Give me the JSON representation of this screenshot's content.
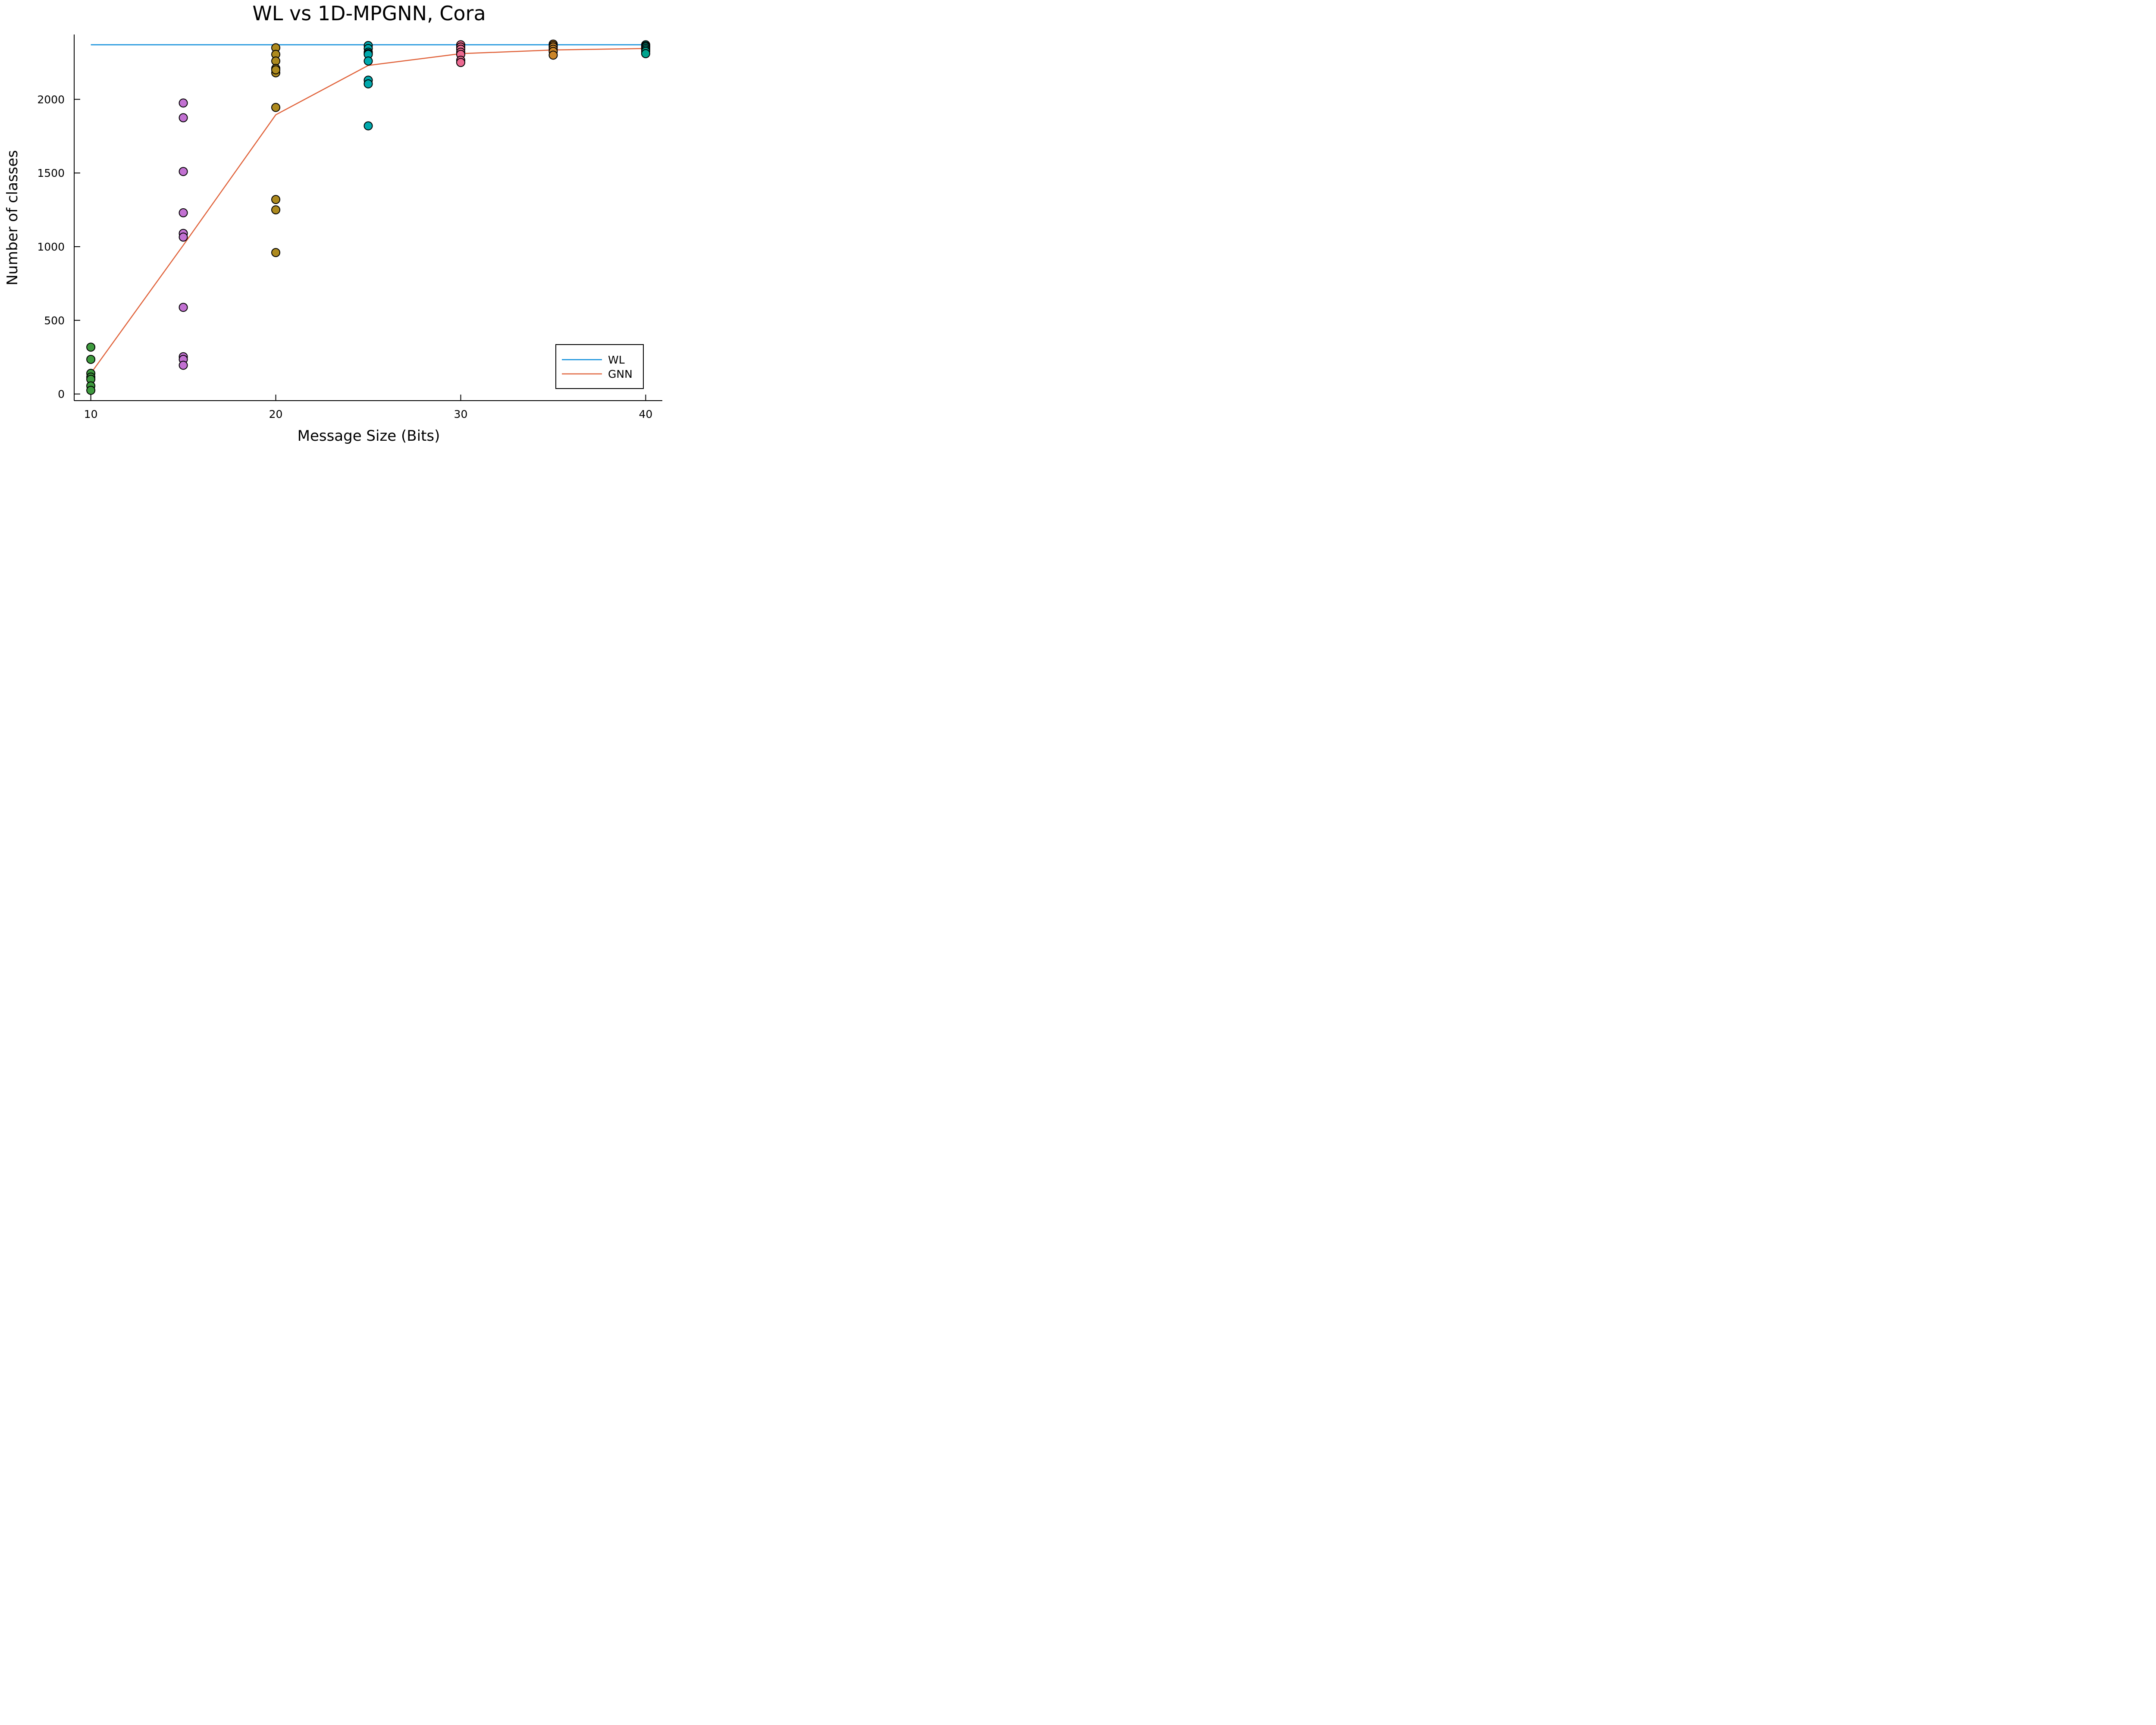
{
  "chart_data": {
    "type": "scatter",
    "title": "WL vs 1D-MPGNN, Cora",
    "xlabel": "Message Size (Bits)",
    "ylabel": "Number of classes",
    "xlim": [
      9.1,
      40.9
    ],
    "ylim": [
      -45,
      2440
    ],
    "x_ticks": [
      10,
      20,
      30,
      40
    ],
    "y_ticks": [
      0,
      500,
      1000,
      1500,
      2000
    ],
    "grid": false,
    "legend_position": "bottom-right",
    "lines": [
      {
        "name": "WL",
        "color": "#0d8ddb",
        "x": [
          10,
          40
        ],
        "y": [
          2370,
          2370
        ]
      },
      {
        "name": "GNN",
        "color": "#e0623a",
        "x": [
          10,
          15,
          20,
          25,
          30,
          35,
          40
        ],
        "y": [
          140,
          1010,
          1895,
          2230,
          2310,
          2335,
          2345
        ]
      }
    ],
    "scatter_groups": [
      {
        "x": 10,
        "color": "#3e9a3e",
        "values": [
          318,
          235,
          140,
          115,
          100,
          55,
          25
        ]
      },
      {
        "x": 15,
        "color": "#c271d2",
        "values": [
          1975,
          1875,
          1510,
          1230,
          1090,
          1065,
          588,
          253,
          235,
          195
        ]
      },
      {
        "x": 20,
        "color": "#ad8a1e",
        "values": [
          2350,
          2305,
          2260,
          2210,
          2180,
          2200,
          1945,
          1320,
          1250,
          960
        ]
      },
      {
        "x": 25,
        "color": "#00a9ad",
        "values": [
          2365,
          2345,
          2320,
          2310,
          2305,
          2260,
          2130,
          2105,
          1820
        ]
      },
      {
        "x": 30,
        "color": "#ec6a91",
        "values": [
          2370,
          2355,
          2340,
          2320,
          2305,
          2265,
          2250
        ]
      },
      {
        "x": 35,
        "color": "#cb8528",
        "values": [
          2375,
          2365,
          2355,
          2340,
          2325,
          2300
        ]
      },
      {
        "x": 40,
        "color": "#00a48e",
        "values": [
          2370,
          2362,
          2355,
          2345,
          2335,
          2325,
          2310
        ]
      }
    ]
  }
}
